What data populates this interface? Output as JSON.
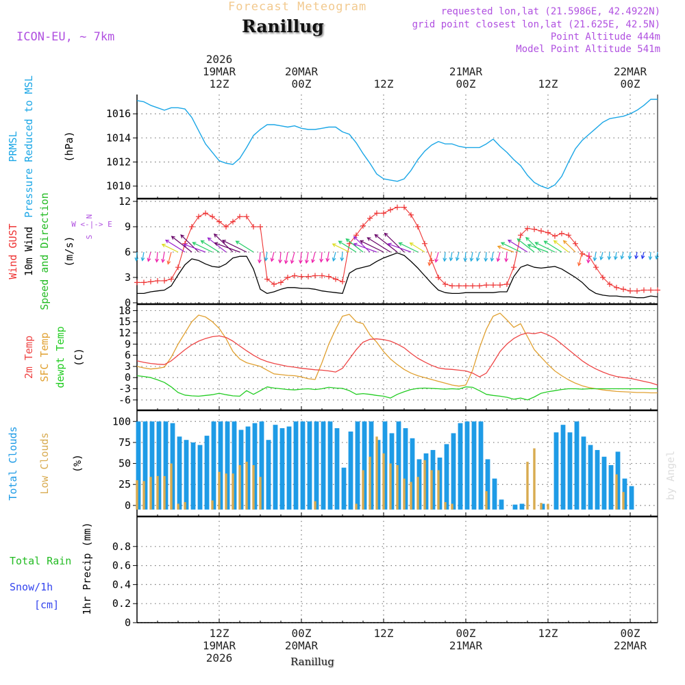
{
  "header": {
    "supertitle": "Forecast Meteogram",
    "location": "Ranillug",
    "model": "ICON-EU, ~ 7km",
    "requested": "requested lon,lat (21.5986E, 42.4922N)",
    "gridpoint": "grid point closest lon,lat (21.625E, 42.5N)",
    "point_alt": "Point Altitude 444m",
    "model_alt": "Model Point Altitude 541m",
    "footer_location": "Ranillug",
    "credit": "by Angel"
  },
  "colors": {
    "pressure": "#1aa6e6",
    "gust": "#ee3333",
    "wind": "#000000",
    "temp2m": "#ee4444",
    "sfc": "#e0a030",
    "dewpt": "#22cc22",
    "clouds_total": "#1e9be6",
    "clouds_low": "#d8ab50",
    "rain": "#22bb22",
    "snow": "#3344ee",
    "purple": "#b050e0"
  },
  "time_axis": {
    "top": [
      {
        "t": 12,
        "lines": [
          "2026",
          "19MAR",
          "12Z"
        ]
      },
      {
        "t": 24,
        "lines": [
          "20MAR",
          "00Z"
        ]
      },
      {
        "t": 36,
        "lines": [
          "12Z"
        ]
      },
      {
        "t": 48,
        "lines": [
          "21MAR",
          "00Z"
        ]
      },
      {
        "t": 60,
        "lines": [
          "12Z"
        ]
      },
      {
        "t": 72,
        "lines": [
          "22MAR",
          "00Z"
        ]
      }
    ],
    "bottom": [
      {
        "t": 12,
        "lines": [
          "12Z",
          "19MAR",
          "2026"
        ]
      },
      {
        "t": 24,
        "lines": [
          "00Z",
          "20MAR"
        ]
      },
      {
        "t": 36,
        "lines": [
          "12Z"
        ]
      },
      {
        "t": 48,
        "lines": [
          "00Z",
          "21MAR"
        ]
      },
      {
        "t": 60,
        "lines": [
          "12Z"
        ]
      },
      {
        "t": 72,
        "lines": [
          "00Z",
          "22MAR"
        ]
      }
    ]
  },
  "chart_data": [
    {
      "type": "line",
      "title": "PRMSL Pressure Reduced to MSL",
      "ylabel_lines": [
        "PRMSL",
        "Pressure Reduced to MSL"
      ],
      "unit": "(hPa)",
      "x_hours": [
        0,
        1,
        2,
        3,
        4,
        5,
        6,
        7,
        8,
        9,
        10,
        11,
        12,
        13,
        14,
        15,
        16,
        17,
        18,
        19,
        20,
        21,
        22,
        23,
        24,
        25,
        26,
        27,
        28,
        29,
        30,
        31,
        32,
        33,
        34,
        35,
        36,
        37,
        38,
        39,
        40,
        41,
        42,
        43,
        44,
        45,
        46,
        47,
        48,
        49,
        50,
        51,
        52,
        53,
        54,
        55,
        56,
        57,
        58,
        59,
        60,
        61,
        62,
        63,
        64,
        65,
        66,
        67,
        68,
        69,
        70,
        71,
        72,
        73,
        74,
        75,
        76
      ],
      "values": [
        1017.1,
        1017.0,
        1016.7,
        1016.5,
        1016.3,
        1016.5,
        1016.5,
        1016.4,
        1015.7,
        1014.6,
        1013.5,
        1012.8,
        1012.1,
        1011.9,
        1011.8,
        1012.3,
        1013.2,
        1014.2,
        1014.7,
        1015.1,
        1015.1,
        1015.0,
        1014.9,
        1015.0,
        1014.8,
        1014.7,
        1014.7,
        1014.8,
        1014.9,
        1014.9,
        1014.5,
        1014.3,
        1013.6,
        1012.7,
        1011.9,
        1011.0,
        1010.6,
        1010.5,
        1010.4,
        1010.6,
        1011.3,
        1012.2,
        1012.9,
        1013.4,
        1013.7,
        1013.5,
        1013.5,
        1013.3,
        1013.2,
        1013.2,
        1013.2,
        1013.5,
        1013.9,
        1013.3,
        1012.8,
        1012.2,
        1011.7,
        1010.9,
        1010.3,
        1010.0,
        1009.8,
        1010.1,
        1010.8,
        1012.0,
        1013.1,
        1013.8,
        1014.3,
        1014.8,
        1015.3,
        1015.6,
        1015.7,
        1015.8,
        1016.0,
        1016.3,
        1016.7,
        1017.2,
        1017.2
      ],
      "ylim": [
        1009.3,
        1017.6
      ],
      "yticks": [
        1010,
        1012,
        1014,
        1016
      ]
    },
    {
      "type": "line",
      "title": "Wind GUST / 10m Wind Speed and Direction",
      "ylabel_lines": [
        "Wind GUST",
        "10m Wind",
        "Speed and Direction"
      ],
      "unit": "(m/s)",
      "compass": [
        "N",
        "W <-|-> E",
        "S"
      ],
      "x_hours": [
        0,
        1,
        2,
        3,
        4,
        5,
        6,
        7,
        8,
        9,
        10,
        11,
        12,
        13,
        14,
        15,
        16,
        17,
        18,
        19,
        20,
        21,
        22,
        23,
        24,
        25,
        26,
        27,
        28,
        29,
        30,
        31,
        32,
        33,
        34,
        35,
        36,
        37,
        38,
        39,
        40,
        41,
        42,
        43,
        44,
        45,
        46,
        47,
        48,
        49,
        50,
        51,
        52,
        53,
        54,
        55,
        56,
        57,
        58,
        59,
        60,
        61,
        62,
        63,
        64,
        65,
        66,
        67,
        68,
        69,
        70,
        71,
        72,
        73,
        74,
        75,
        76
      ],
      "gust": [
        2.4,
        2.4,
        2.5,
        2.6,
        2.6,
        2.8,
        4.2,
        7.0,
        9.0,
        10.2,
        10.6,
        10.2,
        9.6,
        9.0,
        9.6,
        10.2,
        10.2,
        9.0,
        9.0,
        2.8,
        2.2,
        2.4,
        3.0,
        3.2,
        3.1,
        3.1,
        3.2,
        3.2,
        3.1,
        2.8,
        2.5,
        7.0,
        8.0,
        9.1,
        10.0,
        10.6,
        10.6,
        11.0,
        11.3,
        11.3,
        10.4,
        9.0,
        7.0,
        5.0,
        3.0,
        2.2,
        2.0,
        2.0,
        2.0,
        2.0,
        2.0,
        2.1,
        2.1,
        2.1,
        2.2,
        4.2,
        8.0,
        8.8,
        8.7,
        8.5,
        8.3,
        7.9,
        8.2,
        8.0,
        7.0,
        5.8,
        5.5,
        4.2,
        3.0,
        2.2,
        1.8,
        1.6,
        1.4,
        1.4,
        1.5,
        1.5,
        1.5
      ],
      "wind": [
        1.1,
        1.1,
        1.3,
        1.4,
        1.5,
        2.0,
        3.3,
        4.5,
        5.2,
        5.0,
        4.6,
        4.3,
        4.2,
        4.6,
        5.3,
        5.5,
        5.5,
        4.0,
        1.6,
        1.1,
        1.3,
        1.6,
        1.8,
        1.8,
        1.7,
        1.7,
        1.6,
        1.4,
        1.3,
        1.2,
        1.1,
        3.5,
        4.0,
        4.2,
        4.4,
        4.9,
        5.3,
        5.6,
        5.9,
        5.6,
        4.9,
        4.1,
        3.2,
        2.3,
        1.5,
        1.2,
        1.1,
        1.1,
        1.2,
        1.2,
        1.2,
        1.2,
        1.2,
        1.3,
        1.3,
        3.1,
        4.2,
        4.5,
        4.2,
        4.1,
        4.2,
        4.3,
        4.0,
        3.5,
        3.0,
        2.4,
        1.6,
        1.1,
        0.9,
        0.8,
        0.8,
        0.7,
        0.7,
        0.6,
        0.6,
        0.8,
        0.7
      ],
      "ylim": [
        0,
        12
      ],
      "yticks": [
        0,
        3,
        6,
        9,
        12
      ],
      "arrow_level": 6
    },
    {
      "type": "line",
      "title": "2m Temp / SFC Temp / dewpt Temp",
      "ylabel_lines": [
        "2m Temp",
        "SFC Temp",
        "dewpt Temp"
      ],
      "unit": "(C)",
      "x_hours": [
        0,
        1,
        2,
        3,
        4,
        5,
        6,
        7,
        8,
        9,
        10,
        11,
        12,
        13,
        14,
        15,
        16,
        17,
        18,
        19,
        20,
        21,
        22,
        23,
        24,
        25,
        26,
        27,
        28,
        29,
        30,
        31,
        32,
        33,
        34,
        35,
        36,
        37,
        38,
        39,
        40,
        41,
        42,
        43,
        44,
        45,
        46,
        47,
        48,
        49,
        50,
        51,
        52,
        53,
        54,
        55,
        56,
        57,
        58,
        59,
        60,
        61,
        62,
        63,
        64,
        65,
        66,
        67,
        68,
        69,
        70,
        71,
        72,
        73,
        74,
        75,
        76
      ],
      "temp2m": [
        4.5,
        4.1,
        3.8,
        3.6,
        3.5,
        4.5,
        6.0,
        7.5,
        8.8,
        9.8,
        10.5,
        11.0,
        11.2,
        10.8,
        9.8,
        8.5,
        7.2,
        6.0,
        5.0,
        4.3,
        3.8,
        3.4,
        3.0,
        2.8,
        2.5,
        2.3,
        2.1,
        2.0,
        1.8,
        1.5,
        2.5,
        5.0,
        7.5,
        9.5,
        10.3,
        10.4,
        10.2,
        9.8,
        9.0,
        8.0,
        6.5,
        5.2,
        4.2,
        3.3,
        2.6,
        2.3,
        2.2,
        2.0,
        1.8,
        1.2,
        0.2,
        1.2,
        4.0,
        7.0,
        9.0,
        10.5,
        11.5,
        12.0,
        11.8,
        12.2,
        11.5,
        10.5,
        9.0,
        7.5,
        6.0,
        4.5,
        3.3,
        2.3,
        1.5,
        0.8,
        0.3,
        0.0,
        -0.2,
        -0.6,
        -1.0,
        -1.4,
        -2.0
      ],
      "sfc": [
        3.0,
        2.6,
        2.3,
        2.5,
        2.8,
        5.5,
        9.0,
        12.0,
        15.0,
        16.8,
        16.3,
        15.0,
        13.2,
        10.5,
        7.0,
        5.0,
        4.0,
        3.5,
        3.0,
        2.0,
        1.0,
        0.8,
        0.6,
        0.5,
        0.2,
        -0.3,
        -0.5,
        4.0,
        9.0,
        13.0,
        16.5,
        17.0,
        15.0,
        14.5,
        11.5,
        9.5,
        7.0,
        5.0,
        3.5,
        2.2,
        1.2,
        0.5,
        0.0,
        -0.5,
        -1.0,
        -1.5,
        -2.0,
        -2.3,
        -2.0,
        2.0,
        8.0,
        13.0,
        16.5,
        17.3,
        15.5,
        13.5,
        14.5,
        11.0,
        7.5,
        5.5,
        3.5,
        1.8,
        0.5,
        -0.6,
        -1.5,
        -2.2,
        -2.7,
        -3.0,
        -3.3,
        -3.5,
        -3.7,
        -3.8,
        -3.9,
        -4.0,
        -4.0,
        -4.1,
        -4.1
      ],
      "dewpt": [
        0.5,
        0.3,
        0.0,
        -0.6,
        -1.3,
        -2.5,
        -4.0,
        -4.7,
        -4.9,
        -5.0,
        -4.8,
        -4.6,
        -4.2,
        -4.6,
        -4.9,
        -5.0,
        -3.5,
        -4.5,
        -3.5,
        -2.5,
        -2.8,
        -3.0,
        -3.2,
        -3.3,
        -3.1,
        -3.0,
        -3.2,
        -3.0,
        -2.6,
        -2.8,
        -2.9,
        -3.5,
        -4.5,
        -4.3,
        -4.5,
        -4.8,
        -5.0,
        -5.5,
        -4.5,
        -3.8,
        -3.2,
        -2.9,
        -2.8,
        -2.9,
        -3.0,
        -3.1,
        -3.0,
        -3.1,
        -2.5,
        -2.6,
        -3.5,
        -4.5,
        -4.8,
        -5.0,
        -5.3,
        -5.8,
        -5.5,
        -6.0,
        -5.2,
        -4.2,
        -3.8,
        -3.5,
        -3.2,
        -3.0,
        -3.0,
        -3.1,
        -3.0,
        -3.0,
        -3.0,
        -3.0,
        -3.0,
        -3.0,
        -3.0,
        -3.0,
        -3.0,
        -3.0,
        -3.0
      ],
      "ylim": [
        -7.5,
        19
      ],
      "yticks": [
        -6,
        -3,
        0,
        3,
        6,
        9,
        12,
        15,
        18
      ]
    },
    {
      "type": "bar",
      "title": "Total Clouds / Low Clouds",
      "ylabel_lines": [
        "Total Clouds",
        "Low Clouds"
      ],
      "unit": "(%)",
      "x_hours": [
        0,
        1,
        2,
        3,
        4,
        5,
        6,
        7,
        8,
        9,
        10,
        11,
        12,
        13,
        14,
        15,
        16,
        17,
        18,
        19,
        20,
        21,
        22,
        23,
        24,
        25,
        26,
        27,
        28,
        29,
        30,
        31,
        32,
        33,
        34,
        35,
        36,
        37,
        38,
        39,
        40,
        41,
        42,
        43,
        44,
        45,
        46,
        47,
        48,
        49,
        50,
        51,
        52,
        53,
        54,
        55,
        56,
        57,
        58,
        59,
        60,
        61,
        62,
        63,
        64,
        65,
        66,
        67,
        68,
        69,
        70,
        71,
        72,
        73,
        74,
        75,
        76
      ],
      "total": [
        100,
        100,
        100,
        100,
        100,
        98,
        82,
        78,
        75,
        72,
        83,
        100,
        100,
        100,
        100,
        90,
        94,
        98,
        100,
        78,
        96,
        92,
        94,
        100,
        100,
        100,
        100,
        100,
        100,
        92,
        45,
        88,
        100,
        100,
        100,
        78,
        100,
        86,
        100,
        92,
        80,
        55,
        62,
        66,
        57,
        73,
        86,
        98,
        100,
        100,
        100,
        55,
        32,
        7,
        0,
        1,
        2,
        0,
        0,
        2,
        0,
        87,
        96,
        87,
        100,
        82,
        72,
        66,
        58,
        48,
        64,
        32,
        23,
        0,
        0,
        0,
        0
      ],
      "low": [
        30,
        29,
        34,
        35,
        35,
        50,
        2,
        4,
        0,
        0,
        0,
        6,
        40,
        38,
        38,
        48,
        52,
        48,
        34,
        0,
        0,
        0,
        0,
        0,
        0,
        0,
        5,
        0,
        0,
        0,
        0,
        0,
        2,
        42,
        58,
        82,
        62,
        50,
        48,
        32,
        28,
        34,
        54,
        42,
        42,
        4,
        2,
        0,
        0,
        0,
        0,
        17,
        0,
        0,
        0,
        0,
        0,
        52,
        68,
        3,
        2,
        0,
        0,
        0,
        0,
        0,
        0,
        0,
        0,
        0,
        37,
        16,
        0,
        0,
        0,
        0,
        0
      ],
      "ylim": [
        -5,
        110
      ],
      "yticks": [
        0,
        25,
        50,
        75,
        100
      ]
    },
    {
      "type": "bar",
      "title": "1hr Precip",
      "ylabel": "1hr Precip (mm)",
      "legend": {
        "rain_label": "Total  Rain",
        "snow_label": "Snow/1h",
        "snow_unit": "[cm]"
      },
      "x_hours": [
        0,
        6,
        12,
        18,
        24,
        30,
        36,
        42,
        48,
        54,
        60,
        66,
        72,
        76
      ],
      "rain": [
        0,
        0,
        0,
        0,
        0,
        0,
        0,
        0,
        0,
        0,
        0,
        0,
        0,
        0
      ],
      "snow": [
        0,
        0,
        0,
        0,
        0,
        0,
        0,
        0,
        0,
        0,
        0,
        0,
        0,
        0
      ],
      "ylim": [
        0,
        1.0
      ],
      "yticks": [
        0,
        0.2,
        0.4,
        0.6,
        0.8
      ],
      "ytick_labels": [
        "0",
        "0.2",
        "0.4",
        "0.6",
        "0.8"
      ]
    }
  ]
}
